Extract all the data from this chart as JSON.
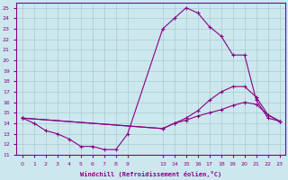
{
  "xlabel": "Windchill (Refroidissement éolien,°C)",
  "bg_color": "#cce8ee",
  "line_color": "#880088",
  "grid_color": "#aacccc",
  "ylim": [
    11,
    25.5
  ],
  "yticks": [
    11,
    12,
    13,
    14,
    15,
    16,
    17,
    18,
    19,
    20,
    21,
    22,
    23,
    24,
    25
  ],
  "xlabels": [
    "0",
    "1",
    "2",
    "3",
    "4",
    "5",
    "6",
    "7",
    "8",
    "9",
    "",
    "",
    "13",
    "14",
    "15",
    "16",
    "17",
    "18",
    "19",
    "20",
    "21",
    "22",
    "23"
  ],
  "xtick_positions": [
    0,
    1,
    2,
    3,
    4,
    5,
    6,
    7,
    8,
    9,
    10,
    11,
    12,
    13,
    14,
    15,
    16,
    17,
    18,
    19,
    20,
    21,
    22
  ],
  "line1_xi": [
    0,
    1,
    2,
    3,
    4,
    5,
    6,
    7,
    8,
    9,
    12,
    13,
    14,
    15,
    16,
    17,
    18,
    19,
    20,
    21,
    22
  ],
  "line1_y": [
    14.5,
    14.0,
    13.3,
    13.0,
    12.5,
    11.8,
    11.8,
    11.5,
    11.5,
    13.0,
    23.0,
    24.0,
    25.0,
    24.5,
    23.2,
    22.3,
    20.5,
    20.5,
    16.2,
    14.5,
    14.2
  ],
  "line2_xi": [
    0,
    12,
    13,
    14,
    15,
    16,
    17,
    18,
    19,
    20,
    21,
    22
  ],
  "line2_y": [
    14.5,
    13.5,
    14.0,
    14.5,
    15.2,
    16.2,
    17.0,
    17.5,
    17.5,
    16.5,
    14.8,
    14.2
  ],
  "line3_xi": [
    0,
    12,
    13,
    14,
    15,
    16,
    17,
    18,
    19,
    20,
    21,
    22
  ],
  "line3_y": [
    14.5,
    13.5,
    14.0,
    14.3,
    14.7,
    15.0,
    15.3,
    15.7,
    16.0,
    15.8,
    14.8,
    14.2
  ]
}
